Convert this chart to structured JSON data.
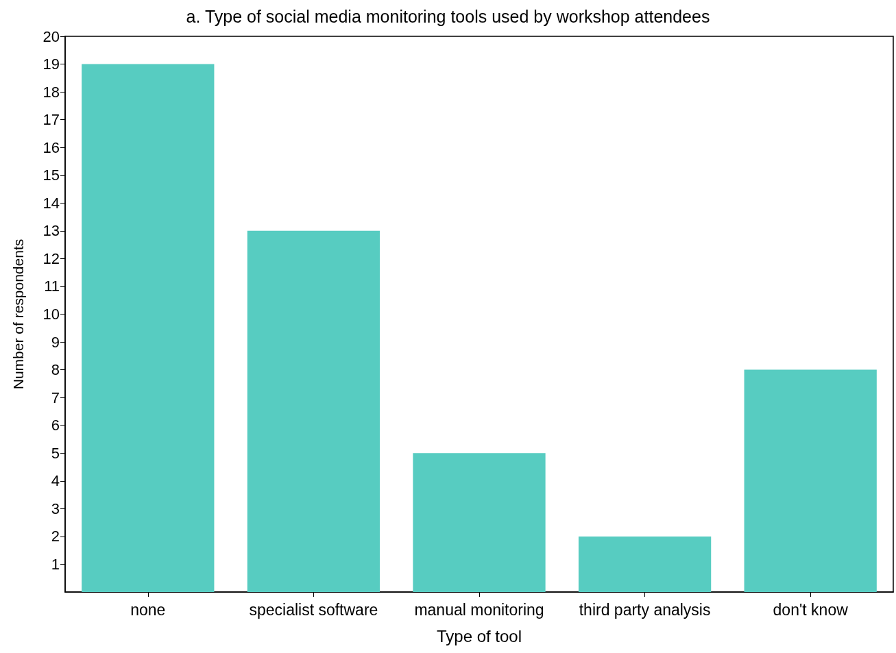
{
  "chart_data": {
    "type": "bar",
    "title": "a. Type of social media monitoring tools used by workshop attendees",
    "xlabel": "Type of tool",
    "ylabel": "Number of respondents",
    "categories": [
      "none",
      "specialist software",
      "manual monitoring",
      "third party analysis",
      "don't know"
    ],
    "values": [
      19,
      13,
      5,
      2,
      8
    ],
    "color": "#57ccc1",
    "ylim": [
      0,
      20
    ],
    "yticks": [
      1,
      2,
      3,
      4,
      5,
      6,
      7,
      8,
      9,
      10,
      11,
      12,
      13,
      14,
      15,
      16,
      17,
      18,
      19,
      20
    ],
    "grid": false
  }
}
